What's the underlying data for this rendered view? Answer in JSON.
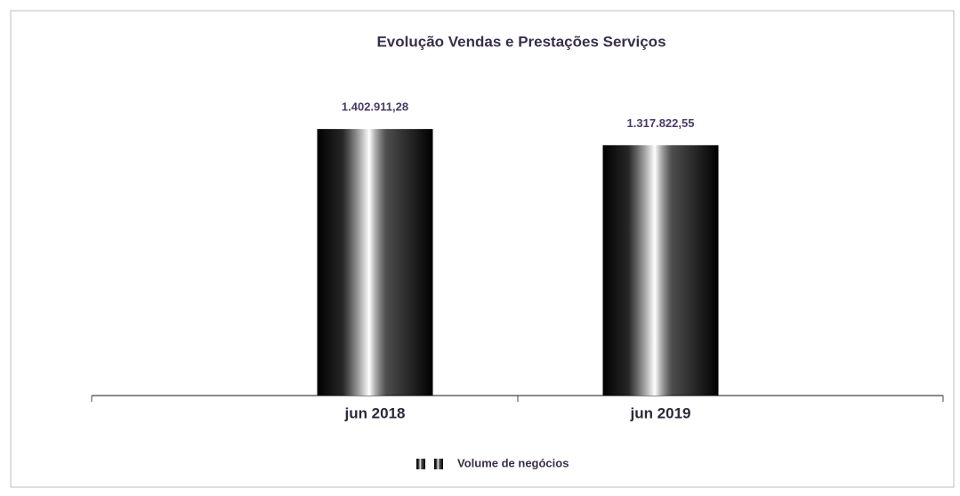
{
  "chart_data": {
    "type": "bar",
    "title": "Evolução Vendas e Prestações Serviços",
    "categories": [
      "jun 2018",
      "jun 2019"
    ],
    "series": [
      {
        "name": "Volume de negócios",
        "color": "#5fb97c",
        "values": [
          1402911.28,
          1317822.55
        ],
        "value_labels": [
          "1.402.911,28",
          "1.317.822,55"
        ]
      }
    ],
    "ylim": [
      0,
      1600000
    ],
    "legend": "bottom"
  }
}
